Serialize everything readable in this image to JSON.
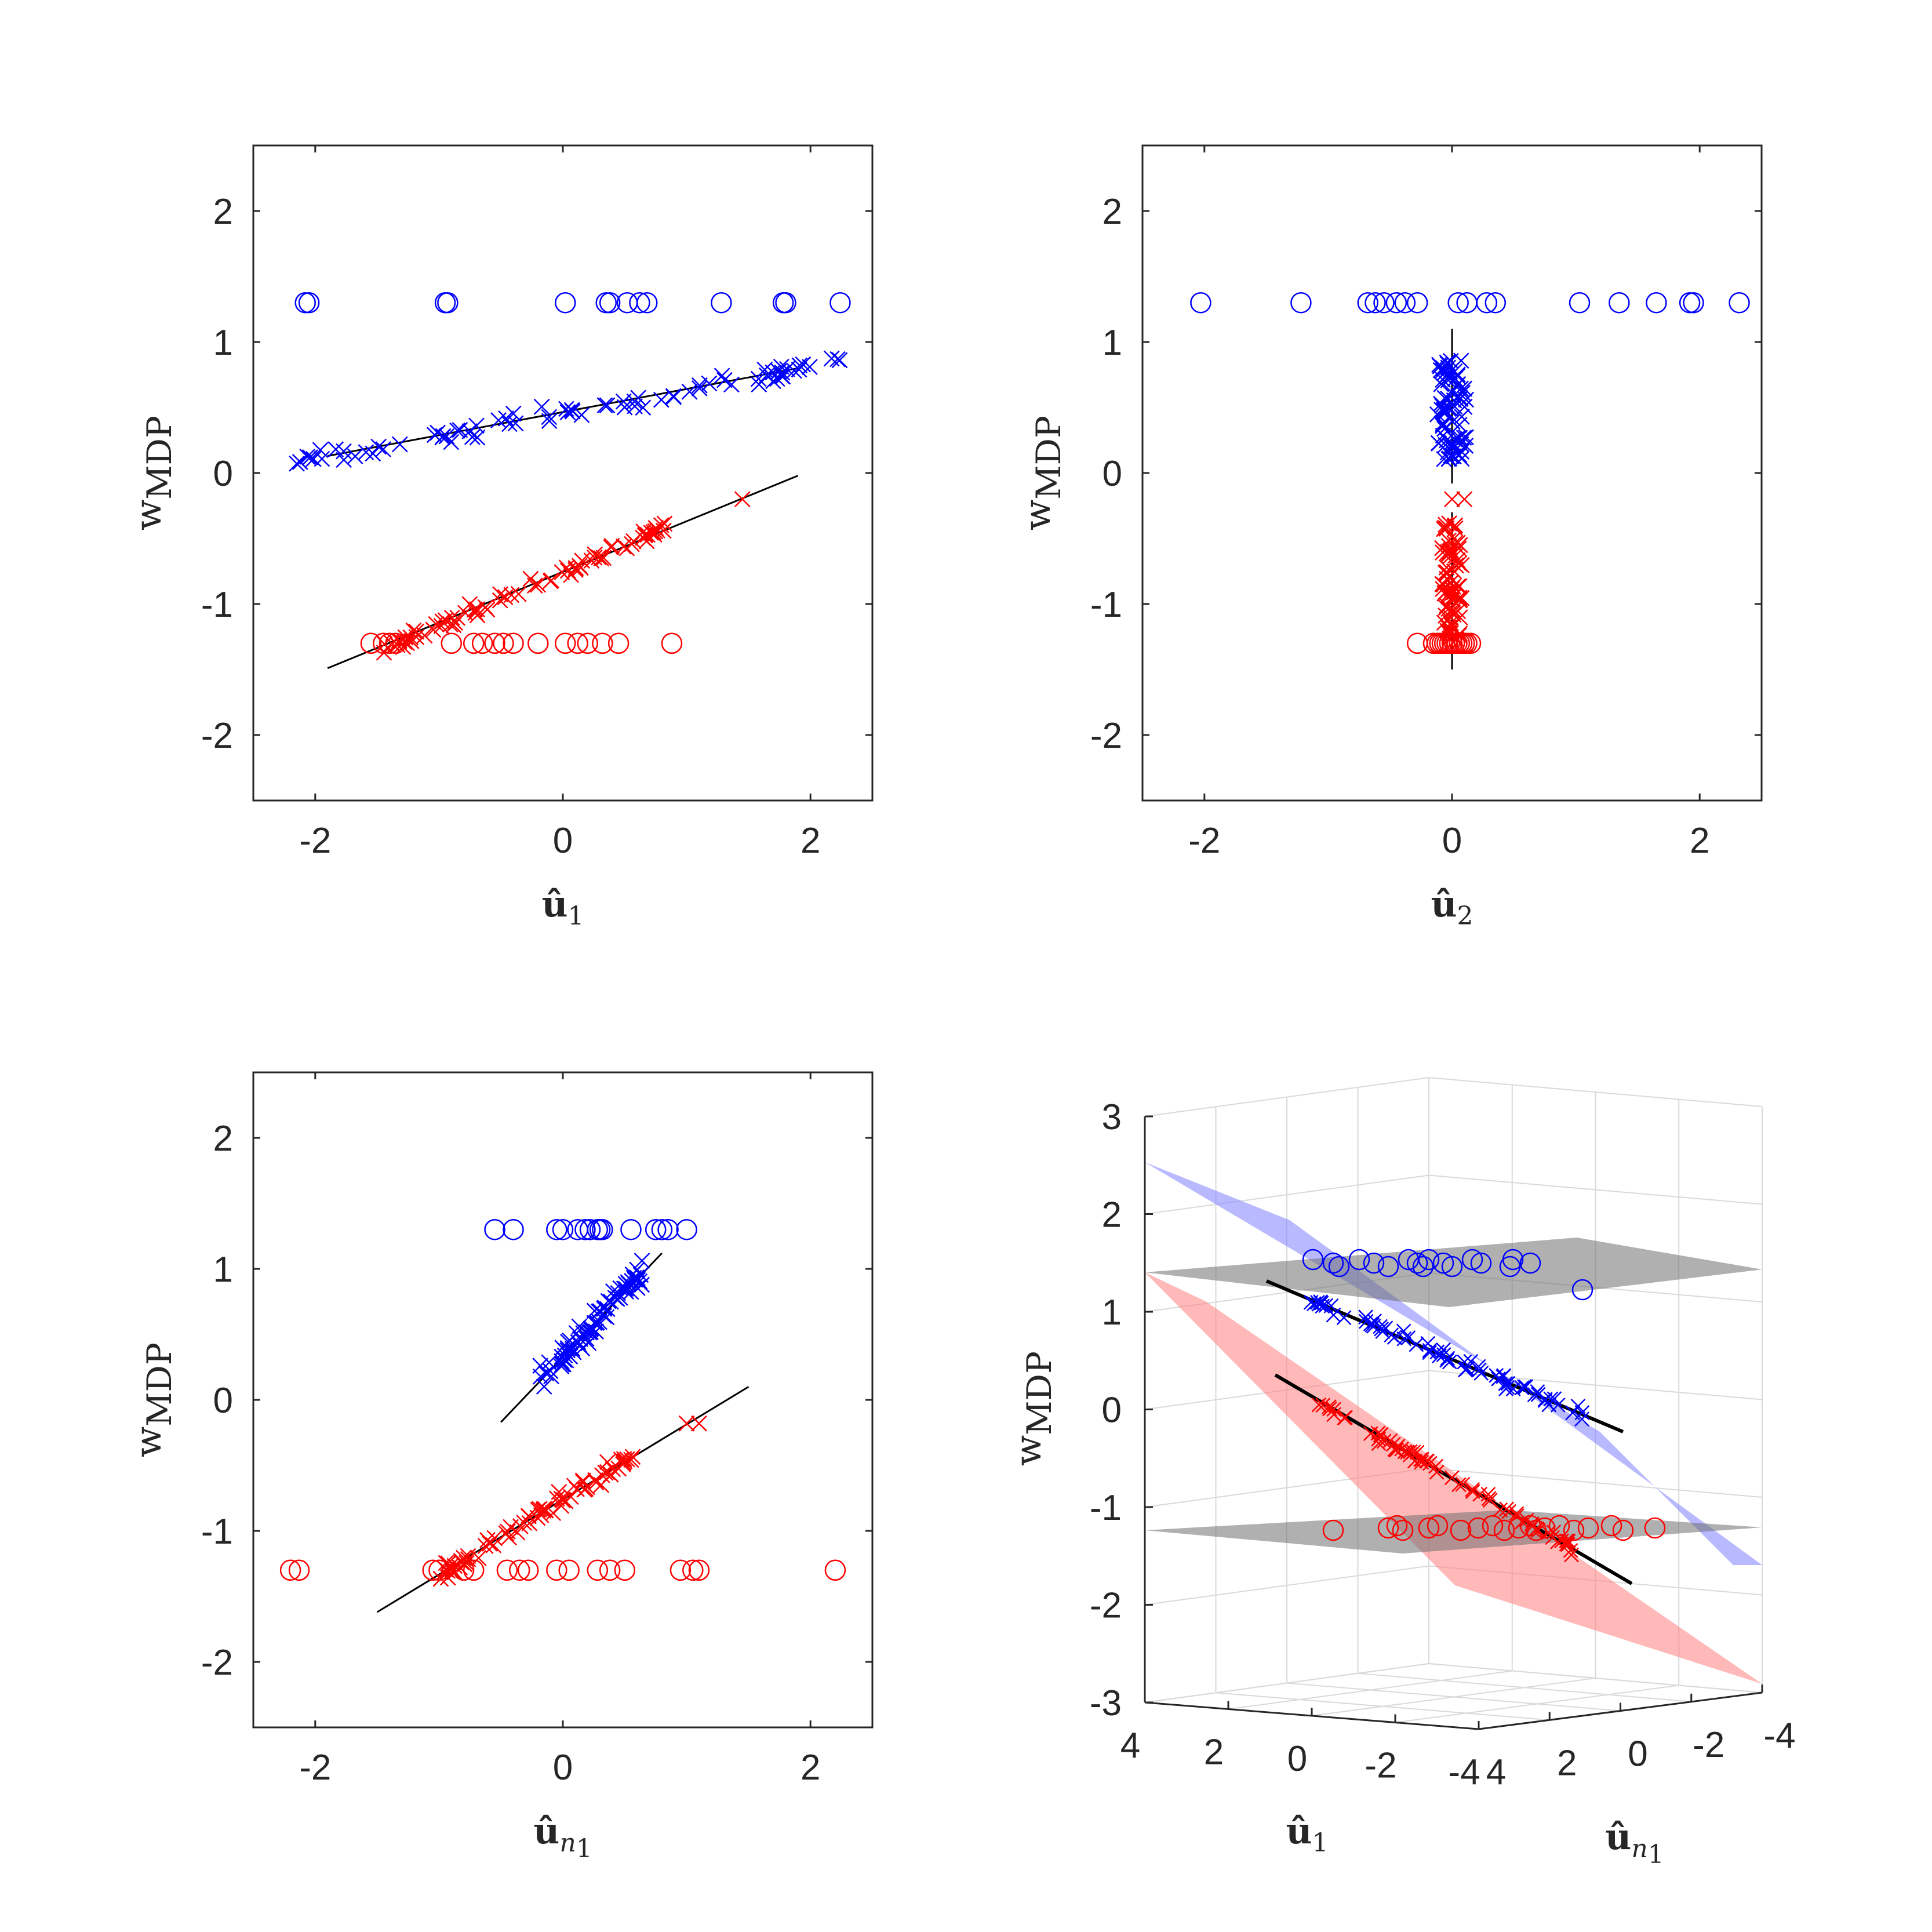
{
  "colors": {
    "blue": "#0000ff",
    "red": "#ff0000",
    "fit_line": "#000000",
    "plane_gray": "#6f6f6f",
    "plane_blue": "#7f7fff",
    "plane_red": "#ff7f7f"
  },
  "chart_data": [
    {
      "type": "scatter",
      "ylabel_main": "w",
      "ylabel_sub": "MDP",
      "xlabel_main": "û",
      "xlabel_sub": "1",
      "xlim": [
        -2.5,
        2.5
      ],
      "ylim": [
        -2.5,
        2.5
      ],
      "xticks": [
        -2,
        0,
        2
      ],
      "yticks": [
        -2,
        -1,
        0,
        1,
        2
      ],
      "xtick_labels": [
        "-2",
        "0",
        "2"
      ],
      "ytick_labels": [
        "-2",
        "-1",
        "0",
        "1",
        "2"
      ],
      "series": [
        {
          "color": "blue",
          "marker": "o",
          "y": 1.3,
          "x": [
            -2.08,
            -2.05,
            -0.95,
            -0.93,
            0.02,
            0.35,
            0.38,
            0.52,
            0.62,
            0.68,
            1.28,
            1.78,
            1.8,
            2.24
          ]
        },
        {
          "color": "red",
          "marker": "o",
          "y": -1.3,
          "x": [
            -1.55,
            -1.45,
            -1.4,
            -1.35,
            -0.9,
            -0.72,
            -0.65,
            -0.55,
            -0.48,
            -0.4,
            -0.2,
            0.02,
            0.12,
            0.2,
            0.32,
            0.45,
            0.88
          ]
        },
        {
          "color": "blue",
          "marker": "x",
          "fit": [
            [
              -1.9,
              0.13
            ],
            [
              1.9,
              0.8
            ]
          ],
          "trend": {
            "slope": 0.178,
            "intercept": 0.46,
            "xmin": -2.2,
            "xmax": 2.25,
            "n": 80,
            "spread": 0.06
          }
        },
        {
          "color": "red",
          "marker": "x",
          "fit": [
            [
              -1.9,
              -1.49
            ],
            [
              1.9,
              -0.02
            ]
          ],
          "trend": {
            "slope": 0.41,
            "intercept": -0.76,
            "xmin": -1.45,
            "xmax": 0.85,
            "n": 80,
            "spread": 0.05
          },
          "extra_points": [
            [
              1.45,
              -0.2
            ]
          ]
        }
      ]
    },
    {
      "type": "scatter",
      "ylabel_main": "w",
      "ylabel_sub": "MDP",
      "xlabel_main": "û",
      "xlabel_sub": "2",
      "xlim": [
        -2.5,
        2.5
      ],
      "ylim": [
        -2.5,
        2.5
      ],
      "xticks": [
        -2,
        0,
        2
      ],
      "yticks": [
        -2,
        -1,
        0,
        1,
        2
      ],
      "xtick_labels": [
        "-2",
        "0",
        "2"
      ],
      "ytick_labels": [
        "-2",
        "-1",
        "0",
        "1",
        "2"
      ],
      "series": [
        {
          "color": "blue",
          "marker": "o",
          "y": 1.3,
          "x": [
            -2.03,
            -1.22,
            -0.68,
            -0.62,
            -0.55,
            -0.45,
            -0.38,
            -0.28,
            0.05,
            0.12,
            0.28,
            0.35,
            1.03,
            1.35,
            1.65,
            1.92,
            1.95,
            2.32
          ]
        },
        {
          "color": "red",
          "marker": "o",
          "y": -1.3,
          "x": [
            -0.28,
            -0.15,
            -0.12,
            -0.1,
            -0.08,
            -0.06,
            -0.04,
            -0.02,
            0.0,
            0.02,
            0.04,
            0.06,
            0.08,
            0.1,
            0.12,
            0.15
          ]
        },
        {
          "color": "blue",
          "marker": "x",
          "fit": [
            [
              0,
              -0.08
            ],
            [
              0,
              1.1
            ]
          ],
          "cluster": {
            "xmin": -0.12,
            "xmax": 0.12,
            "ymin": 0.1,
            "ymax": 0.9,
            "n": 80
          }
        },
        {
          "color": "red",
          "marker": "x",
          "fit": [
            [
              0,
              -1.5
            ],
            [
              0,
              -0.3
            ]
          ],
          "cluster": {
            "xmin": -0.08,
            "xmax": 0.08,
            "ymin": -1.28,
            "ymax": -0.38,
            "n": 80
          },
          "extra_points": [
            [
              0,
              -0.2
            ],
            [
              0.1,
              -0.2
            ]
          ]
        }
      ]
    },
    {
      "type": "scatter",
      "ylabel_main": "w",
      "ylabel_sub": "MDP",
      "xlabel_main": "û",
      "xlabel_sub": "n",
      "xlabel_subsub": "1",
      "xlim": [
        -2.5,
        2.5
      ],
      "ylim": [
        -2.5,
        2.5
      ],
      "xticks": [
        -2,
        0,
        2
      ],
      "yticks": [
        -2,
        -1,
        0,
        1,
        2
      ],
      "xtick_labels": [
        "-2",
        "0",
        "2"
      ],
      "ytick_labels": [
        "-2",
        "-1",
        "0",
        "1",
        "2"
      ],
      "series": [
        {
          "color": "blue",
          "marker": "o",
          "y": 1.3,
          "x": [
            -0.55,
            -0.4,
            -0.05,
            0.0,
            0.12,
            0.18,
            0.22,
            0.28,
            0.3,
            0.32,
            0.55,
            0.75,
            0.8,
            0.85,
            1.0
          ]
        },
        {
          "color": "red",
          "marker": "o",
          "y": -1.3,
          "x": [
            -2.2,
            -2.13,
            -1.05,
            -1.0,
            -0.8,
            -0.72,
            -0.45,
            -0.35,
            -0.28,
            -0.05,
            0.05,
            0.28,
            0.38,
            0.5,
            0.95,
            1.05,
            1.1,
            2.2
          ]
        },
        {
          "color": "blue",
          "marker": "x",
          "fit": [
            [
              -0.5,
              -0.17
            ],
            [
              0.8,
              1.12
            ]
          ],
          "trend": {
            "slope": 0.99,
            "intercept": 0.33,
            "xmin": -0.2,
            "xmax": 0.65,
            "n": 80,
            "spread": 0.08
          }
        },
        {
          "color": "red",
          "marker": "x",
          "fit": [
            [
              -1.5,
              -1.62
            ],
            [
              1.5,
              0.1
            ]
          ],
          "trend": {
            "slope": 0.58,
            "intercept": -0.76,
            "xmin": -1.0,
            "xmax": 0.6,
            "n": 80,
            "spread": 0.06
          },
          "extra_points": [
            [
              1.0,
              -0.18
            ],
            [
              1.1,
              -0.18
            ]
          ]
        }
      ]
    },
    {
      "type": "scatter",
      "ylabel_main": "w",
      "ylabel_sub": "MDP",
      "xlabel_main": "û",
      "xlabel_sub": "1",
      "x2label_main": "û",
      "x2label_sub": "n",
      "x2label_subsub": "1",
      "zlim": [
        -3,
        3
      ],
      "zticks": [
        -3,
        -2,
        -1,
        0,
        1,
        2,
        3
      ],
      "ztick_labels": [
        "-3",
        "-2",
        "-1",
        "0",
        "1",
        "2",
        "3"
      ],
      "u1_tick_labels": [
        "4",
        "2",
        "0",
        "-2",
        "-4"
      ],
      "un1_tick_labels": [
        "4",
        "2",
        "0",
        "-2",
        "-4"
      ]
    }
  ]
}
